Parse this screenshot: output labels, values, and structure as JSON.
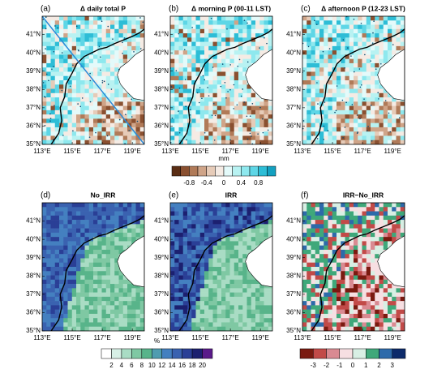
{
  "panels": [
    {
      "label": "(a)",
      "title": "Δ daily total P"
    },
    {
      "label": "(b)",
      "title": "Δ morning P (00-11 LST)"
    },
    {
      "label": "(c)",
      "title": "Δ afternoon P (12-23 LST)"
    },
    {
      "label": "(d)",
      "title": "No_IRR"
    },
    {
      "label": "(e)",
      "title": "IRR"
    },
    {
      "label": "(f)",
      "title": "IRR−No_IRR"
    }
  ],
  "lat_ticks": [
    "35°N",
    "36°N",
    "37°N",
    "38°N",
    "39°N",
    "40°N",
    "41°N"
  ],
  "lon_ticks": [
    "113°E",
    "115°E",
    "117°E",
    "119°E"
  ],
  "colorbars": [
    {
      "unit": "mm",
      "labels": [
        "-0.8",
        "-0.4",
        "0",
        "0.4",
        "0.8"
      ],
      "colors": [
        "#5a2d14",
        "#8a5030",
        "#b07a58",
        "#cfa488",
        "#e6cbb8",
        "#f5ebe4",
        "#e4fafa",
        "#b8f2f2",
        "#8ee8ee",
        "#5ed6e6",
        "#2dbdd6",
        "#13a0c0"
      ]
    },
    {
      "unit": "%",
      "labels": [
        "2",
        "4",
        "6",
        "8",
        "10",
        "12",
        "14",
        "16",
        "18",
        "20"
      ],
      "colors": [
        "#ffffff",
        "#d7f0e6",
        "#a9dcc4",
        "#7fc8a3",
        "#58b48a",
        "#4f9cb0",
        "#4480c0",
        "#3a62b0",
        "#2a3f96",
        "#1c2070",
        "#5a1a8a"
      ]
    },
    {
      "unit": "",
      "labels": [
        "-3",
        "-2",
        "-1",
        "0",
        "1",
        "2",
        "3"
      ],
      "colors": [
        "#7a1a10",
        "#c24a48",
        "#d98a92",
        "#f7dfe2",
        "#d8efe4",
        "#3fa87a",
        "#2d6aaa",
        "#0c2a6a"
      ]
    }
  ]
}
